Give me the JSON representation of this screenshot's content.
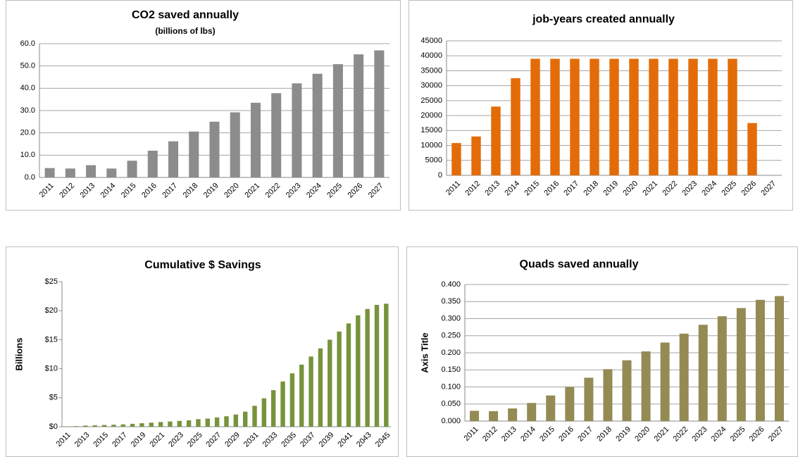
{
  "chart_data": [
    {
      "type": "bar",
      "title": "CO2 saved annually",
      "subtitle": "(billions of lbs)",
      "color": "#8c8c8c",
      "grid": true,
      "categories": [
        "2011",
        "2012",
        "2013",
        "2014",
        "2015",
        "2016",
        "2017",
        "2018",
        "2019",
        "2020",
        "2021",
        "2022",
        "2023",
        "2024",
        "2025",
        "2026",
        "2027"
      ],
      "values": [
        4.2,
        4.0,
        5.5,
        4.0,
        7.5,
        12.0,
        16.2,
        20.6,
        25.0,
        29.2,
        33.5,
        37.8,
        42.2,
        46.5,
        50.8,
        55.2,
        57.0
      ],
      "ylim": [
        0,
        60
      ],
      "yticks": [
        {
          "value": 0,
          "label": "0.0"
        },
        {
          "value": 10,
          "label": "10.0"
        },
        {
          "value": 20,
          "label": "20.0"
        },
        {
          "value": 30,
          "label": "30.0"
        },
        {
          "value": 40,
          "label": "40.0"
        },
        {
          "value": 50,
          "label": "50.0"
        },
        {
          "value": 60,
          "label": "60.0"
        }
      ]
    },
    {
      "type": "bar",
      "title": "job-years created annually",
      "color": "#e36c09",
      "grid": true,
      "categories": [
        "2011",
        "2012",
        "2013",
        "2014",
        "2015",
        "2016",
        "2017",
        "2018",
        "2019",
        "2020",
        "2021",
        "2022",
        "2023",
        "2024",
        "2025",
        "2026",
        "2027"
      ],
      "values": [
        10800,
        13000,
        23000,
        32500,
        39000,
        39000,
        39000,
        39000,
        39000,
        39000,
        39000,
        39000,
        39000,
        39000,
        39000,
        17500,
        0
      ],
      "ylim": [
        0,
        45000
      ],
      "yticks": [
        0,
        5000,
        10000,
        15000,
        20000,
        25000,
        30000,
        35000,
        40000,
        45000
      ]
    },
    {
      "type": "bar",
      "title": "Cumulative $ Savings",
      "y_label": "Billions",
      "color": "#77933c",
      "grid": false,
      "categories": [
        "2011",
        null,
        "2013",
        null,
        "2015",
        null,
        "2017",
        null,
        "2019",
        null,
        "2021",
        null,
        "2023",
        null,
        "2025",
        null,
        "2027",
        null,
        "2029",
        null,
        "2031",
        null,
        "2033",
        null,
        "2035",
        null,
        "2037",
        null,
        "2039",
        null,
        "2041",
        null,
        "2043",
        null,
        "2045"
      ],
      "values": [
        0.05,
        0.1,
        0.2,
        0.25,
        0.3,
        0.35,
        0.4,
        0.5,
        0.6,
        0.7,
        0.8,
        0.9,
        1.0,
        1.1,
        1.3,
        1.4,
        1.6,
        1.8,
        2.1,
        2.6,
        3.6,
        4.9,
        6.3,
        7.8,
        9.2,
        10.7,
        12.1,
        13.5,
        15.0,
        16.4,
        17.8,
        19.2,
        20.3,
        21.0,
        21.2
      ],
      "ylim": [
        0,
        25
      ],
      "yticks": [
        {
          "value": 0,
          "label": "$0"
        },
        {
          "value": 5,
          "label": "$5"
        },
        {
          "value": 10,
          "label": "$10"
        },
        {
          "value": 15,
          "label": "$15"
        },
        {
          "value": 20,
          "label": "$20"
        },
        {
          "value": 25,
          "label": "$25"
        }
      ]
    },
    {
      "type": "bar",
      "title": "Quads saved annually",
      "y_label": "Axis Title",
      "color": "#948a54",
      "grid": true,
      "categories": [
        "2011",
        "2012",
        "2013",
        "2014",
        "2015",
        "2016",
        "2017",
        "2018",
        "2019",
        "2020",
        "2021",
        "2022",
        "2023",
        "2024",
        "2025",
        "2026",
        "2027"
      ],
      "values": [
        0.03,
        0.029,
        0.037,
        0.053,
        0.075,
        0.1,
        0.127,
        0.152,
        0.178,
        0.204,
        0.23,
        0.256,
        0.282,
        0.307,
        0.331,
        0.355,
        0.366
      ],
      "ylim": [
        0,
        0.4
      ],
      "yticks": [
        {
          "value": 0,
          "label": "0.000"
        },
        {
          "value": 0.05,
          "label": "0.050"
        },
        {
          "value": 0.1,
          "label": "0.100"
        },
        {
          "value": 0.15,
          "label": "0.150"
        },
        {
          "value": 0.2,
          "label": "0.200"
        },
        {
          "value": 0.25,
          "label": "0.250"
        },
        {
          "value": 0.3,
          "label": "0.300"
        },
        {
          "value": 0.35,
          "label": "0.350"
        },
        {
          "value": 0.4,
          "label": "0.400"
        }
      ]
    }
  ]
}
